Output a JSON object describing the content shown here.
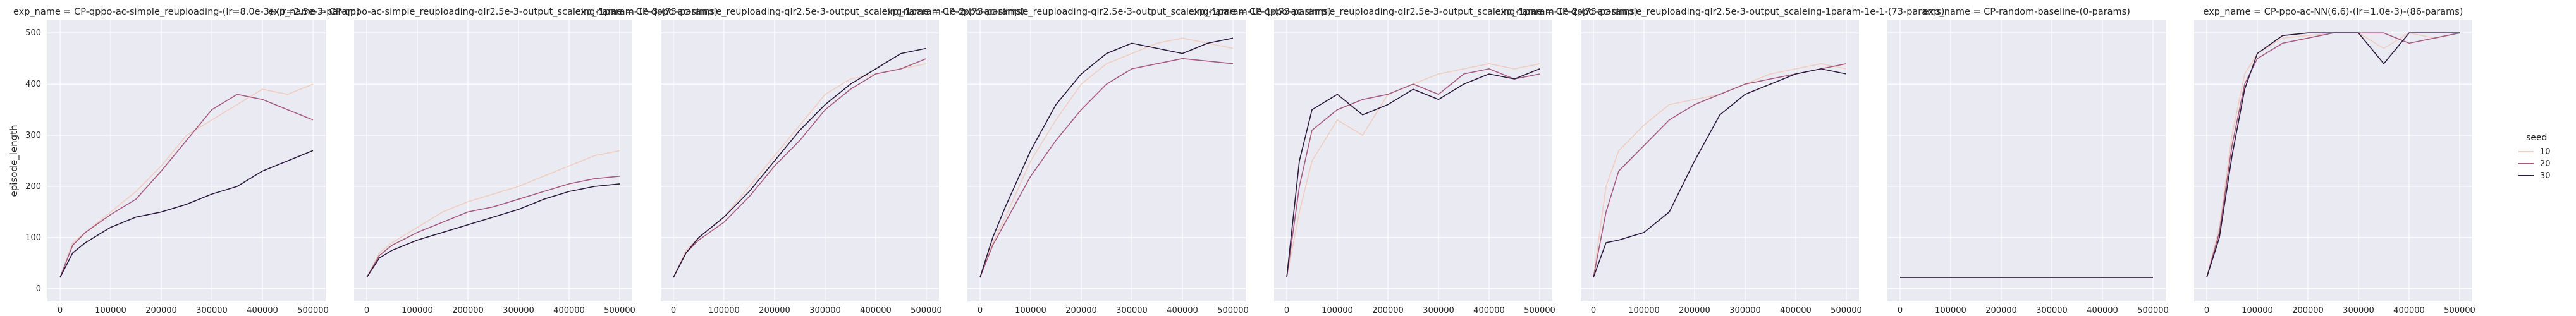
{
  "chart_data": {
    "type": "line",
    "facet_prefix": "exp_name = ",
    "xlabel": "global_step",
    "ylabel": "episode_length",
    "xlim": [
      0,
      500000
    ],
    "ylim": [
      0,
      500
    ],
    "xticks": [
      0,
      100000,
      200000,
      300000,
      400000,
      500000
    ],
    "yticks": [
      0,
      100,
      200,
      300,
      400,
      500
    ],
    "grid": true,
    "legend": {
      "title": "seed",
      "placement": "right",
      "entries": [
        {
          "name": "10",
          "color": "#f0cdc0"
        },
        {
          "name": "20",
          "color": "#a65b7f"
        },
        {
          "name": "30",
          "color": "#2b1a3e"
        }
      ]
    },
    "facets": [
      {
        "title": "CP-qppo-ac-simple_reuploading-(lr=8.0e-3)-(lr=2.5e-3-param)",
        "series": [
          {
            "name": "10",
            "x": [
              0,
              25000,
              50000,
              100000,
              150000,
              200000,
              250000,
              300000,
              350000,
              400000,
              450000,
              500000
            ],
            "y": [
              22,
              90,
              110,
              150,
              190,
              240,
              300,
              330,
              360,
              390,
              380,
              400
            ]
          },
          {
            "name": "20",
            "x": [
              0,
              25000,
              50000,
              100000,
              150000,
              200000,
              250000,
              300000,
              350000,
              400000,
              450000,
              500000
            ],
            "y": [
              22,
              85,
              110,
              145,
              175,
              230,
              290,
              350,
              380,
              370,
              350,
              330
            ]
          },
          {
            "name": "30",
            "x": [
              0,
              25000,
              50000,
              100000,
              150000,
              200000,
              250000,
              300000,
              350000,
              400000,
              450000,
              500000
            ],
            "y": [
              22,
              70,
              90,
              120,
              140,
              150,
              165,
              185,
              200,
              230,
              250,
              270
            ]
          }
        ]
      },
      {
        "title": "CP-qppo-ac-simple_reuploading-qlr2.5e-3-output_scaleing-1param-1e-3-(73-params)",
        "series": [
          {
            "name": "10",
            "x": [
              0,
              25000,
              50000,
              100000,
              150000,
              200000,
              250000,
              300000,
              350000,
              400000,
              450000,
              500000
            ],
            "y": [
              22,
              70,
              90,
              120,
              150,
              170,
              185,
              200,
              220,
              240,
              260,
              270
            ]
          },
          {
            "name": "20",
            "x": [
              0,
              25000,
              50000,
              100000,
              150000,
              200000,
              250000,
              300000,
              350000,
              400000,
              450000,
              500000
            ],
            "y": [
              22,
              65,
              85,
              110,
              130,
              150,
              160,
              175,
              190,
              205,
              215,
              220
            ]
          },
          {
            "name": "30",
            "x": [
              0,
              25000,
              50000,
              100000,
              150000,
              200000,
              250000,
              300000,
              350000,
              400000,
              450000,
              500000
            ],
            "y": [
              22,
              60,
              75,
              95,
              110,
              125,
              140,
              155,
              175,
              190,
              200,
              205
            ]
          }
        ]
      },
      {
        "title": "CP-qppo-ac-simple_reuploading-qlr2.5e-3-output_scaleing-1param-1e-2-(73-params)",
        "series": [
          {
            "name": "10",
            "x": [
              0,
              25000,
              50000,
              100000,
              150000,
              200000,
              250000,
              300000,
              350000,
              400000,
              450000,
              500000
            ],
            "y": [
              22,
              75,
              100,
              140,
              200,
              260,
              320,
              380,
              410,
              420,
              430,
              440
            ]
          },
          {
            "name": "20",
            "x": [
              0,
              25000,
              50000,
              100000,
              150000,
              200000,
              250000,
              300000,
              350000,
              400000,
              450000,
              500000
            ],
            "y": [
              22,
              70,
              95,
              130,
              180,
              240,
              290,
              350,
              390,
              420,
              430,
              450
            ]
          },
          {
            "name": "30",
            "x": [
              0,
              25000,
              50000,
              100000,
              150000,
              200000,
              250000,
              300000,
              350000,
              400000,
              450000,
              500000
            ],
            "y": [
              22,
              70,
              100,
              140,
              190,
              250,
              310,
              360,
              400,
              430,
              460,
              470
            ]
          }
        ]
      },
      {
        "title": "CP-qppo-ac-simple_reuploading-qlr2.5e-3-output_scaleing-1param-1e-1-(73-params)",
        "series": [
          {
            "name": "10",
            "x": [
              0,
              25000,
              50000,
              100000,
              150000,
              200000,
              250000,
              300000,
              350000,
              400000,
              450000,
              500000
            ],
            "y": [
              22,
              90,
              140,
              250,
              330,
              400,
              440,
              460,
              480,
              490,
              480,
              470
            ]
          },
          {
            "name": "20",
            "x": [
              0,
              25000,
              50000,
              100000,
              150000,
              200000,
              250000,
              300000,
              350000,
              400000,
              450000,
              500000
            ],
            "y": [
              22,
              85,
              130,
              220,
              290,
              350,
              400,
              430,
              440,
              450,
              445,
              440
            ]
          },
          {
            "name": "30",
            "x": [
              0,
              25000,
              50000,
              100000,
              150000,
              200000,
              250000,
              300000,
              350000,
              400000,
              450000,
              500000
            ],
            "y": [
              22,
              100,
              160,
              270,
              360,
              420,
              460,
              480,
              470,
              460,
              480,
              490
            ]
          }
        ]
      },
      {
        "title": "CP-qppo-ac-simple_reuploading-qlr2.5e-3-output_scaleing-1param-1e-2-(73-params)",
        "series": [
          {
            "name": "10",
            "x": [
              0,
              25000,
              50000,
              100000,
              150000,
              200000,
              250000,
              300000,
              350000,
              400000,
              450000,
              500000
            ],
            "y": [
              22,
              150,
              250,
              330,
              300,
              380,
              400,
              420,
              430,
              440,
              430,
              440
            ]
          },
          {
            "name": "20",
            "x": [
              0,
              25000,
              50000,
              100000,
              150000,
              200000,
              250000,
              300000,
              350000,
              400000,
              450000,
              500000
            ],
            "y": [
              22,
              200,
              310,
              350,
              370,
              380,
              400,
              380,
              420,
              430,
              410,
              420
            ]
          },
          {
            "name": "30",
            "x": [
              0,
              25000,
              50000,
              100000,
              150000,
              200000,
              250000,
              300000,
              350000,
              400000,
              450000,
              500000
            ],
            "y": [
              22,
              250,
              350,
              380,
              340,
              360,
              390,
              370,
              400,
              420,
              410,
              430
            ]
          }
        ]
      },
      {
        "title": "CP-qppo-ac-simple_reuploading-qlr2.5e-3-output_scaleing-1param-1e-1-(73-params)",
        "series": [
          {
            "name": "10",
            "x": [
              0,
              25000,
              50000,
              100000,
              150000,
              200000,
              250000,
              300000,
              350000,
              400000,
              450000,
              500000
            ],
            "y": [
              22,
              200,
              270,
              320,
              360,
              370,
              380,
              400,
              420,
              430,
              440,
              430
            ]
          },
          {
            "name": "20",
            "x": [
              0,
              25000,
              50000,
              100000,
              150000,
              200000,
              250000,
              300000,
              350000,
              400000,
              450000,
              500000
            ],
            "y": [
              22,
              150,
              230,
              280,
              330,
              360,
              380,
              400,
              410,
              420,
              430,
              440
            ]
          },
          {
            "name": "30",
            "x": [
              0,
              25000,
              50000,
              100000,
              150000,
              200000,
              250000,
              300000,
              350000,
              400000,
              450000,
              500000
            ],
            "y": [
              22,
              90,
              95,
              110,
              150,
              250,
              340,
              380,
              400,
              420,
              430,
              420
            ]
          }
        ]
      },
      {
        "title": "CP-random-baseline-(0-params)",
        "series": [
          {
            "name": "10",
            "x": [
              0,
              100000,
              200000,
              300000,
              400000,
              500000
            ],
            "y": [
              22,
              22,
              22,
              22,
              22,
              22
            ]
          },
          {
            "name": "20",
            "x": [
              0,
              100000,
              200000,
              300000,
              400000,
              500000
            ],
            "y": [
              22,
              22,
              22,
              22,
              22,
              22
            ]
          },
          {
            "name": "30",
            "x": [
              0,
              100000,
              200000,
              300000,
              400000,
              500000
            ],
            "y": [
              22,
              22,
              22,
              22,
              22,
              22
            ]
          }
        ]
      },
      {
        "title": "CP-ppo-ac-NN(6,6)-(lr=1.0e-3)-(86-params)",
        "series": [
          {
            "name": "10",
            "x": [
              0,
              25000,
              50000,
              75000,
              100000,
              150000,
              200000,
              250000,
              300000,
              350000,
              400000,
              450000,
              500000
            ],
            "y": [
              22,
              120,
              300,
              420,
              460,
              490,
              495,
              500,
              500,
              470,
              500,
              490,
              500
            ]
          },
          {
            "name": "20",
            "x": [
              0,
              25000,
              50000,
              75000,
              100000,
              150000,
              200000,
              250000,
              300000,
              350000,
              400000,
              450000,
              500000
            ],
            "y": [
              22,
              110,
              280,
              400,
              450,
              480,
              490,
              500,
              500,
              500,
              480,
              490,
              500
            ]
          },
          {
            "name": "30",
            "x": [
              0,
              25000,
              50000,
              75000,
              100000,
              150000,
              200000,
              250000,
              300000,
              350000,
              400000,
              450000,
              500000
            ],
            "y": [
              22,
              100,
              260,
              390,
              460,
              495,
              500,
              500,
              500,
              440,
              500,
              500,
              500
            ]
          }
        ]
      }
    ]
  }
}
